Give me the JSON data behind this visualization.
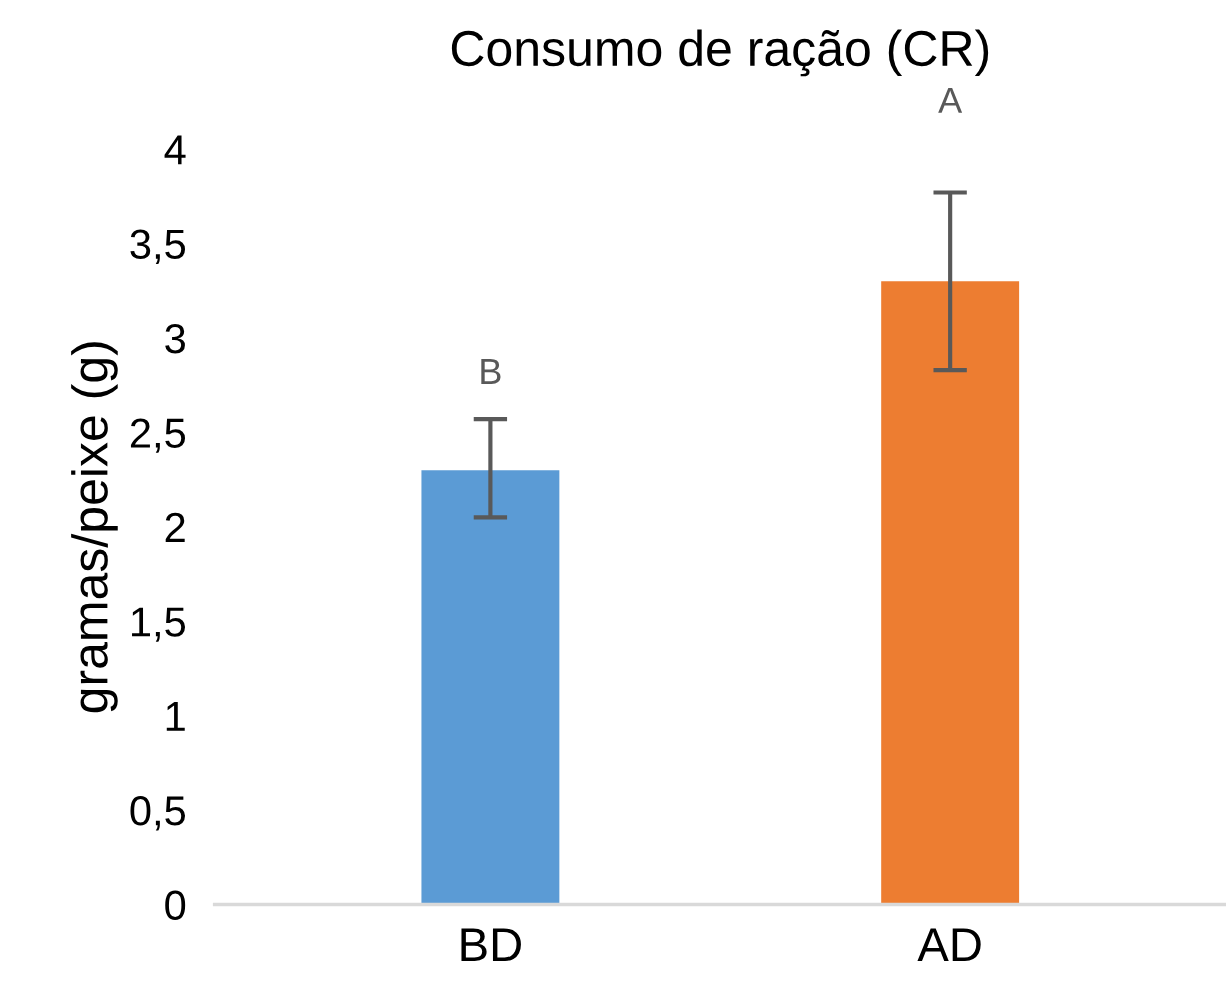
{
  "chart_data": {
    "type": "bar",
    "title": "Consumo de ração (CR)",
    "ylabel": "gramas/peixe (g)",
    "categories": [
      "BD",
      "AD"
    ],
    "values": [
      2.3,
      3.3
    ],
    "colors": [
      "#5b9bd5",
      "#ed7d31"
    ],
    "errors": [
      [
        2.05,
        2.57
      ],
      [
        2.83,
        3.77
      ]
    ],
    "ylim": [
      0,
      4
    ],
    "yticks": [
      0,
      {
        "value": 0.5,
        "label": "0,5"
      },
      1,
      {
        "value": 1.5,
        "label": "1,5"
      },
      2,
      {
        "value": 2.5,
        "label": "2,5"
      },
      3,
      {
        "value": 3.5,
        "label": "3,5"
      },
      4
    ],
    "annotations": [
      "B",
      "A"
    ],
    "grid": false
  }
}
